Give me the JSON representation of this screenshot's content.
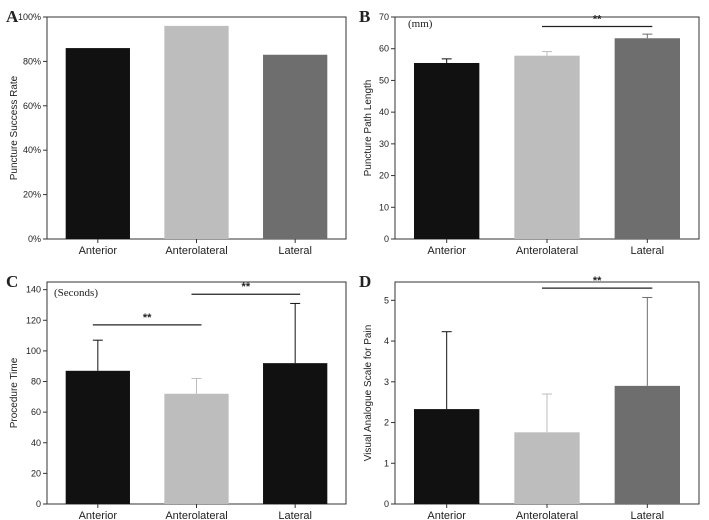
{
  "chart_data": [
    {
      "panel": "A",
      "type": "bar",
      "title": "",
      "unit_label": "",
      "categories": [
        "Anterior",
        "Anterolateral",
        "Lateral"
      ],
      "values": [
        86,
        96,
        83
      ],
      "errors": null,
      "bar_colors": [
        "#111111",
        "#bdbdbd",
        "#6e6e6e"
      ],
      "ylabel": "Puncture Success Rate",
      "ylim": [
        0,
        100
      ],
      "yticks": [
        0,
        20,
        40,
        60,
        80,
        100
      ],
      "ytick_labels": [
        "0%",
        "20%",
        "40%",
        "60%",
        "80%",
        "100%"
      ],
      "significance": []
    },
    {
      "panel": "B",
      "type": "bar",
      "title": "",
      "unit_label": "(mm)",
      "categories": [
        "Anterior",
        "Anterolateral",
        "Lateral"
      ],
      "values": [
        55.5,
        57.8,
        63.3
      ],
      "errors": [
        1.3,
        1.3,
        1.3
      ],
      "bar_colors": [
        "#111111",
        "#bdbdbd",
        "#6e6e6e"
      ],
      "ylabel": "Puncture Path Length",
      "ylim": [
        0,
        70
      ],
      "yticks": [
        0,
        10,
        20,
        30,
        40,
        50,
        60,
        70
      ],
      "ytick_labels": [
        "0",
        "10",
        "20",
        "30",
        "40",
        "50",
        "60",
        "70"
      ],
      "significance": [
        {
          "from": 1,
          "to": 2,
          "y": 67,
          "label": "**"
        }
      ]
    },
    {
      "panel": "C",
      "type": "bar",
      "title": "",
      "unit_label": "(Seconds)",
      "categories": [
        "Anterior",
        "Anterolateral",
        "Lateral"
      ],
      "values": [
        87,
        72,
        92
      ],
      "errors": [
        20,
        10,
        39
      ],
      "bar_colors": [
        "#111111",
        "#bdbdbd",
        "#111111"
      ],
      "ylabel": "Procedure Time",
      "ylim": [
        0,
        145
      ],
      "yticks": [
        0,
        20,
        40,
        60,
        80,
        100,
        120,
        140
      ],
      "ytick_labels": [
        "0",
        "20",
        "40",
        "60",
        "80",
        "100",
        "120",
        "140"
      ],
      "significance": [
        {
          "from": 0,
          "to": 1,
          "y": 117,
          "label": "**"
        },
        {
          "from": 1,
          "to": 2,
          "y": 137,
          "label": "**"
        }
      ]
    },
    {
      "panel": "D",
      "type": "bar",
      "title": "",
      "unit_label": "",
      "categories": [
        "Anterior",
        "Anterolateral",
        "Lateral"
      ],
      "values": [
        2.33,
        1.76,
        2.9
      ],
      "errors": [
        1.9,
        0.94,
        2.17
      ],
      "bar_colors": [
        "#111111",
        "#bdbdbd",
        "#6e6e6e"
      ],
      "ylabel": "Visual Analogue Scale for Pain",
      "ylim": [
        0,
        5.45
      ],
      "yticks": [
        0,
        1,
        2,
        3,
        4,
        5
      ],
      "ytick_labels": [
        "0",
        "1",
        "2",
        "3",
        "4",
        "5"
      ],
      "significance": [
        {
          "from": 1,
          "to": 2,
          "y": 5.3,
          "label": "**"
        }
      ]
    }
  ]
}
